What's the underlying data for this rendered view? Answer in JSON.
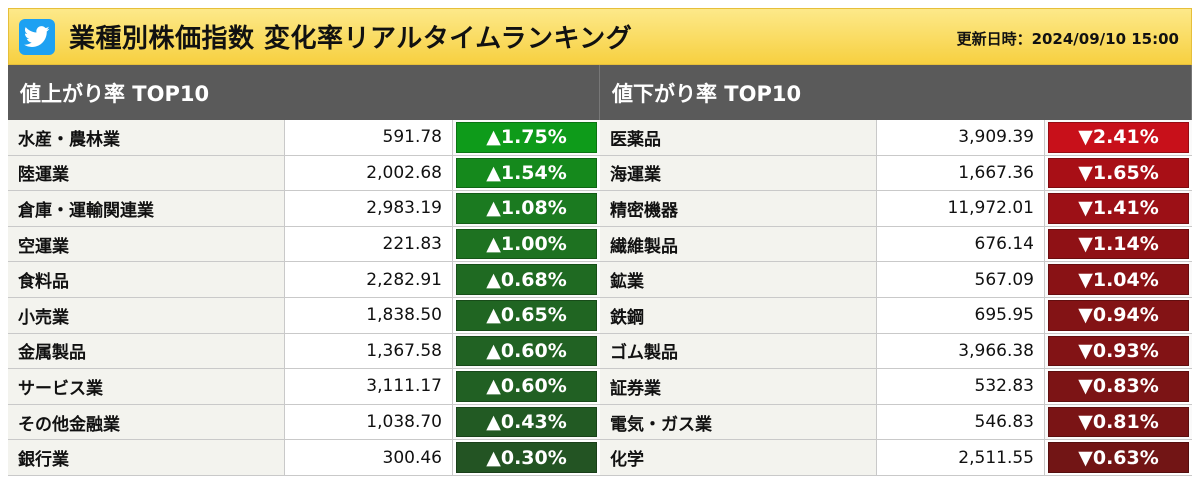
{
  "header": {
    "title": "業種別株価指数 変化率リアルタイムランキング",
    "updated": "更新日時：2024/09/10 15:00",
    "icon": "twitter-icon"
  },
  "up": {
    "heading": "値上がり率 TOP10",
    "rows": [
      {
        "name": "水産・農林業",
        "value": "591.78",
        "change": "▲1.75%",
        "color": "#0e9b1a"
      },
      {
        "name": "陸運業",
        "value": "2,002.68",
        "change": "▲1.54%",
        "color": "#15891c"
      },
      {
        "name": "倉庫・運輸関連業",
        "value": "2,983.19",
        "change": "▲1.08%",
        "color": "#1b7a20"
      },
      {
        "name": "空運業",
        "value": "221.83",
        "change": "▲1.00%",
        "color": "#1e7221"
      },
      {
        "name": "食料品",
        "value": "2,282.91",
        "change": "▲0.68%",
        "color": "#1f6a22"
      },
      {
        "name": "小売業",
        "value": "1,838.50",
        "change": "▲0.65%",
        "color": "#206522"
      },
      {
        "name": "金属製品",
        "value": "1,367.58",
        "change": "▲0.60%",
        "color": "#216223"
      },
      {
        "name": "サービス業",
        "value": "3,111.17",
        "change": "▲0.60%",
        "color": "#216023"
      },
      {
        "name": "その他金融業",
        "value": "1,038.70",
        "change": "▲0.43%",
        "color": "#225a23"
      },
      {
        "name": "銀行業",
        "value": "300.46",
        "change": "▲0.30%",
        "color": "#235423"
      }
    ]
  },
  "down": {
    "heading": "値下がり率 TOP10",
    "rows": [
      {
        "name": "医薬品",
        "value": "3,909.39",
        "change": "▼2.41%",
        "color": "#c8101a"
      },
      {
        "name": "海運業",
        "value": "1,667.36",
        "change": "▼1.65%",
        "color": "#a80f16"
      },
      {
        "name": "精密機器",
        "value": "11,972.01",
        "change": "▼1.41%",
        "color": "#9c1016"
      },
      {
        "name": "繊維製品",
        "value": "676.14",
        "change": "▼1.14%",
        "color": "#8f1115"
      },
      {
        "name": "鉱業",
        "value": "567.09",
        "change": "▼1.04%",
        "color": "#891215"
      },
      {
        "name": "鉄鋼",
        "value": "695.95",
        "change": "▼0.94%",
        "color": "#831315"
      },
      {
        "name": "ゴム製品",
        "value": "3,966.38",
        "change": "▼0.93%",
        "color": "#821315"
      },
      {
        "name": "証券業",
        "value": "532.83",
        "change": "▼0.83%",
        "color": "#7c1415"
      },
      {
        "name": "電気・ガス業",
        "value": "546.83",
        "change": "▼0.81%",
        "color": "#7a1415"
      },
      {
        "name": "化学",
        "value": "2,511.55",
        "change": "▼0.63%",
        "color": "#721515"
      }
    ]
  }
}
